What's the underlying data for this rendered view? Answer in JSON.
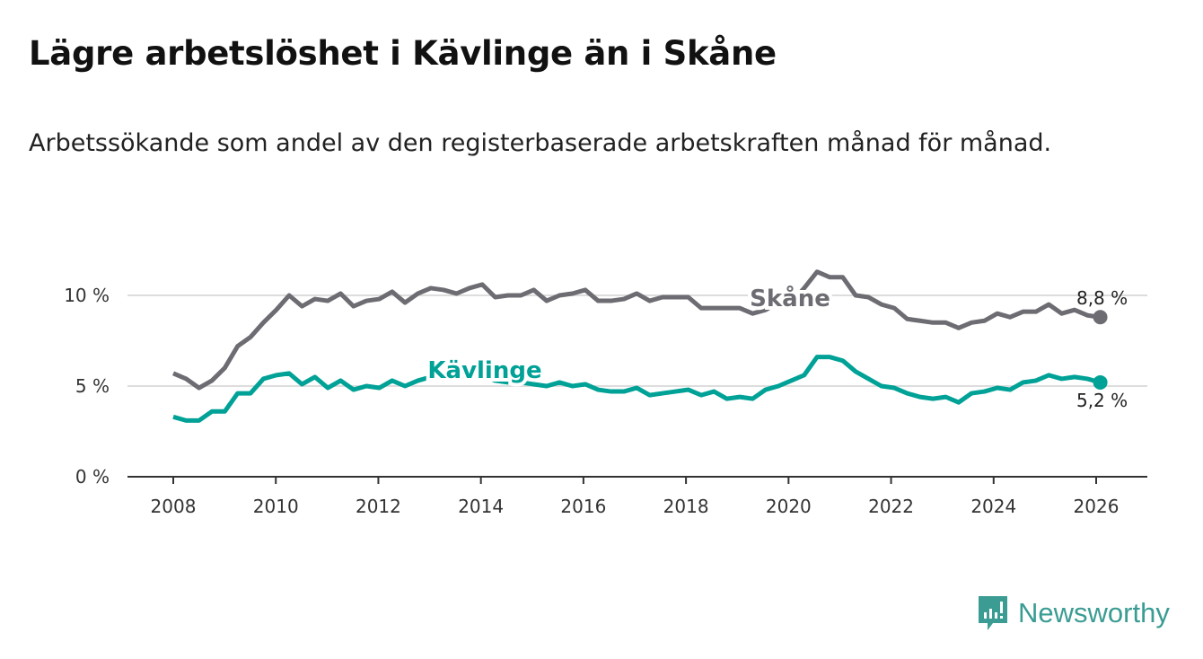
{
  "title": "Lägre arbetslöshet i Kävlinge än i Skåne",
  "subtitle": "Arbetssökande som andel av den registerbaserade arbetskraften månad för månad.",
  "brand": "Newsworthy",
  "chart_data": {
    "type": "line",
    "title": "Lägre arbetslöshet i Kävlinge än i Skåne",
    "xlabel": "",
    "ylabel": "",
    "xlim": [
      2007.0,
      2027.0
    ],
    "ylim": [
      0,
      11.5
    ],
    "x_ticks": [
      2008,
      2010,
      2012,
      2014,
      2016,
      2018,
      2020,
      2022,
      2024,
      2026
    ],
    "x_tick_labels": [
      "2008",
      "2010",
      "2012",
      "2014",
      "2016",
      "2018",
      "2020",
      "2022",
      "2024",
      "2026"
    ],
    "y_ticks": [
      0,
      5,
      10
    ],
    "y_tick_labels": [
      "0 %",
      "5 %",
      "10 %"
    ],
    "grid": "horizontal",
    "x_start": 2008,
    "x_end": 2026.08,
    "series": [
      {
        "name": "Skåne",
        "color": "#6d6c72",
        "end_label": "8,8 %",
        "values": [
          5.7,
          5.4,
          4.9,
          5.3,
          6.0,
          7.2,
          7.7,
          8.5,
          9.2,
          10.0,
          9.4,
          9.8,
          9.7,
          10.1,
          9.4,
          9.7,
          9.8,
          10.2,
          9.6,
          10.1,
          10.4,
          10.3,
          10.1,
          10.4,
          10.6,
          9.9,
          10.0,
          10.0,
          10.3,
          9.7,
          10.0,
          10.1,
          10.3,
          9.7,
          9.7,
          9.8,
          10.1,
          9.7,
          9.9,
          9.9,
          9.9,
          9.3,
          9.3,
          9.3,
          9.3,
          9.0,
          9.2,
          9.6,
          9.6,
          10.4,
          11.3,
          11.0,
          11.0,
          10.0,
          9.9,
          9.5,
          9.3,
          8.7,
          8.6,
          8.5,
          8.5,
          8.2,
          8.5,
          8.6,
          9.0,
          8.8,
          9.1,
          9.1,
          9.5,
          9.0,
          9.2,
          8.9,
          8.8
        ]
      },
      {
        "name": "Kävlinge",
        "color": "#00a196",
        "end_label": "5,2 %",
        "values": [
          3.3,
          3.1,
          3.1,
          3.6,
          3.6,
          4.6,
          4.6,
          5.4,
          5.6,
          5.7,
          5.1,
          5.5,
          4.9,
          5.3,
          4.8,
          5.0,
          4.9,
          5.3,
          5.0,
          5.3,
          5.5,
          5.6,
          5.6,
          5.5,
          5.6,
          5.3,
          5.2,
          5.2,
          5.1,
          5.0,
          5.2,
          5.0,
          5.1,
          4.8,
          4.7,
          4.7,
          4.9,
          4.5,
          4.6,
          4.7,
          4.8,
          4.5,
          4.7,
          4.3,
          4.4,
          4.3,
          4.8,
          5.0,
          5.3,
          5.6,
          6.6,
          6.6,
          6.4,
          5.8,
          5.4,
          5.0,
          4.9,
          4.6,
          4.4,
          4.3,
          4.4,
          4.1,
          4.6,
          4.7,
          4.9,
          4.8,
          5.2,
          5.3,
          5.6,
          5.4,
          5.5,
          5.4,
          5.2
        ]
      }
    ]
  }
}
